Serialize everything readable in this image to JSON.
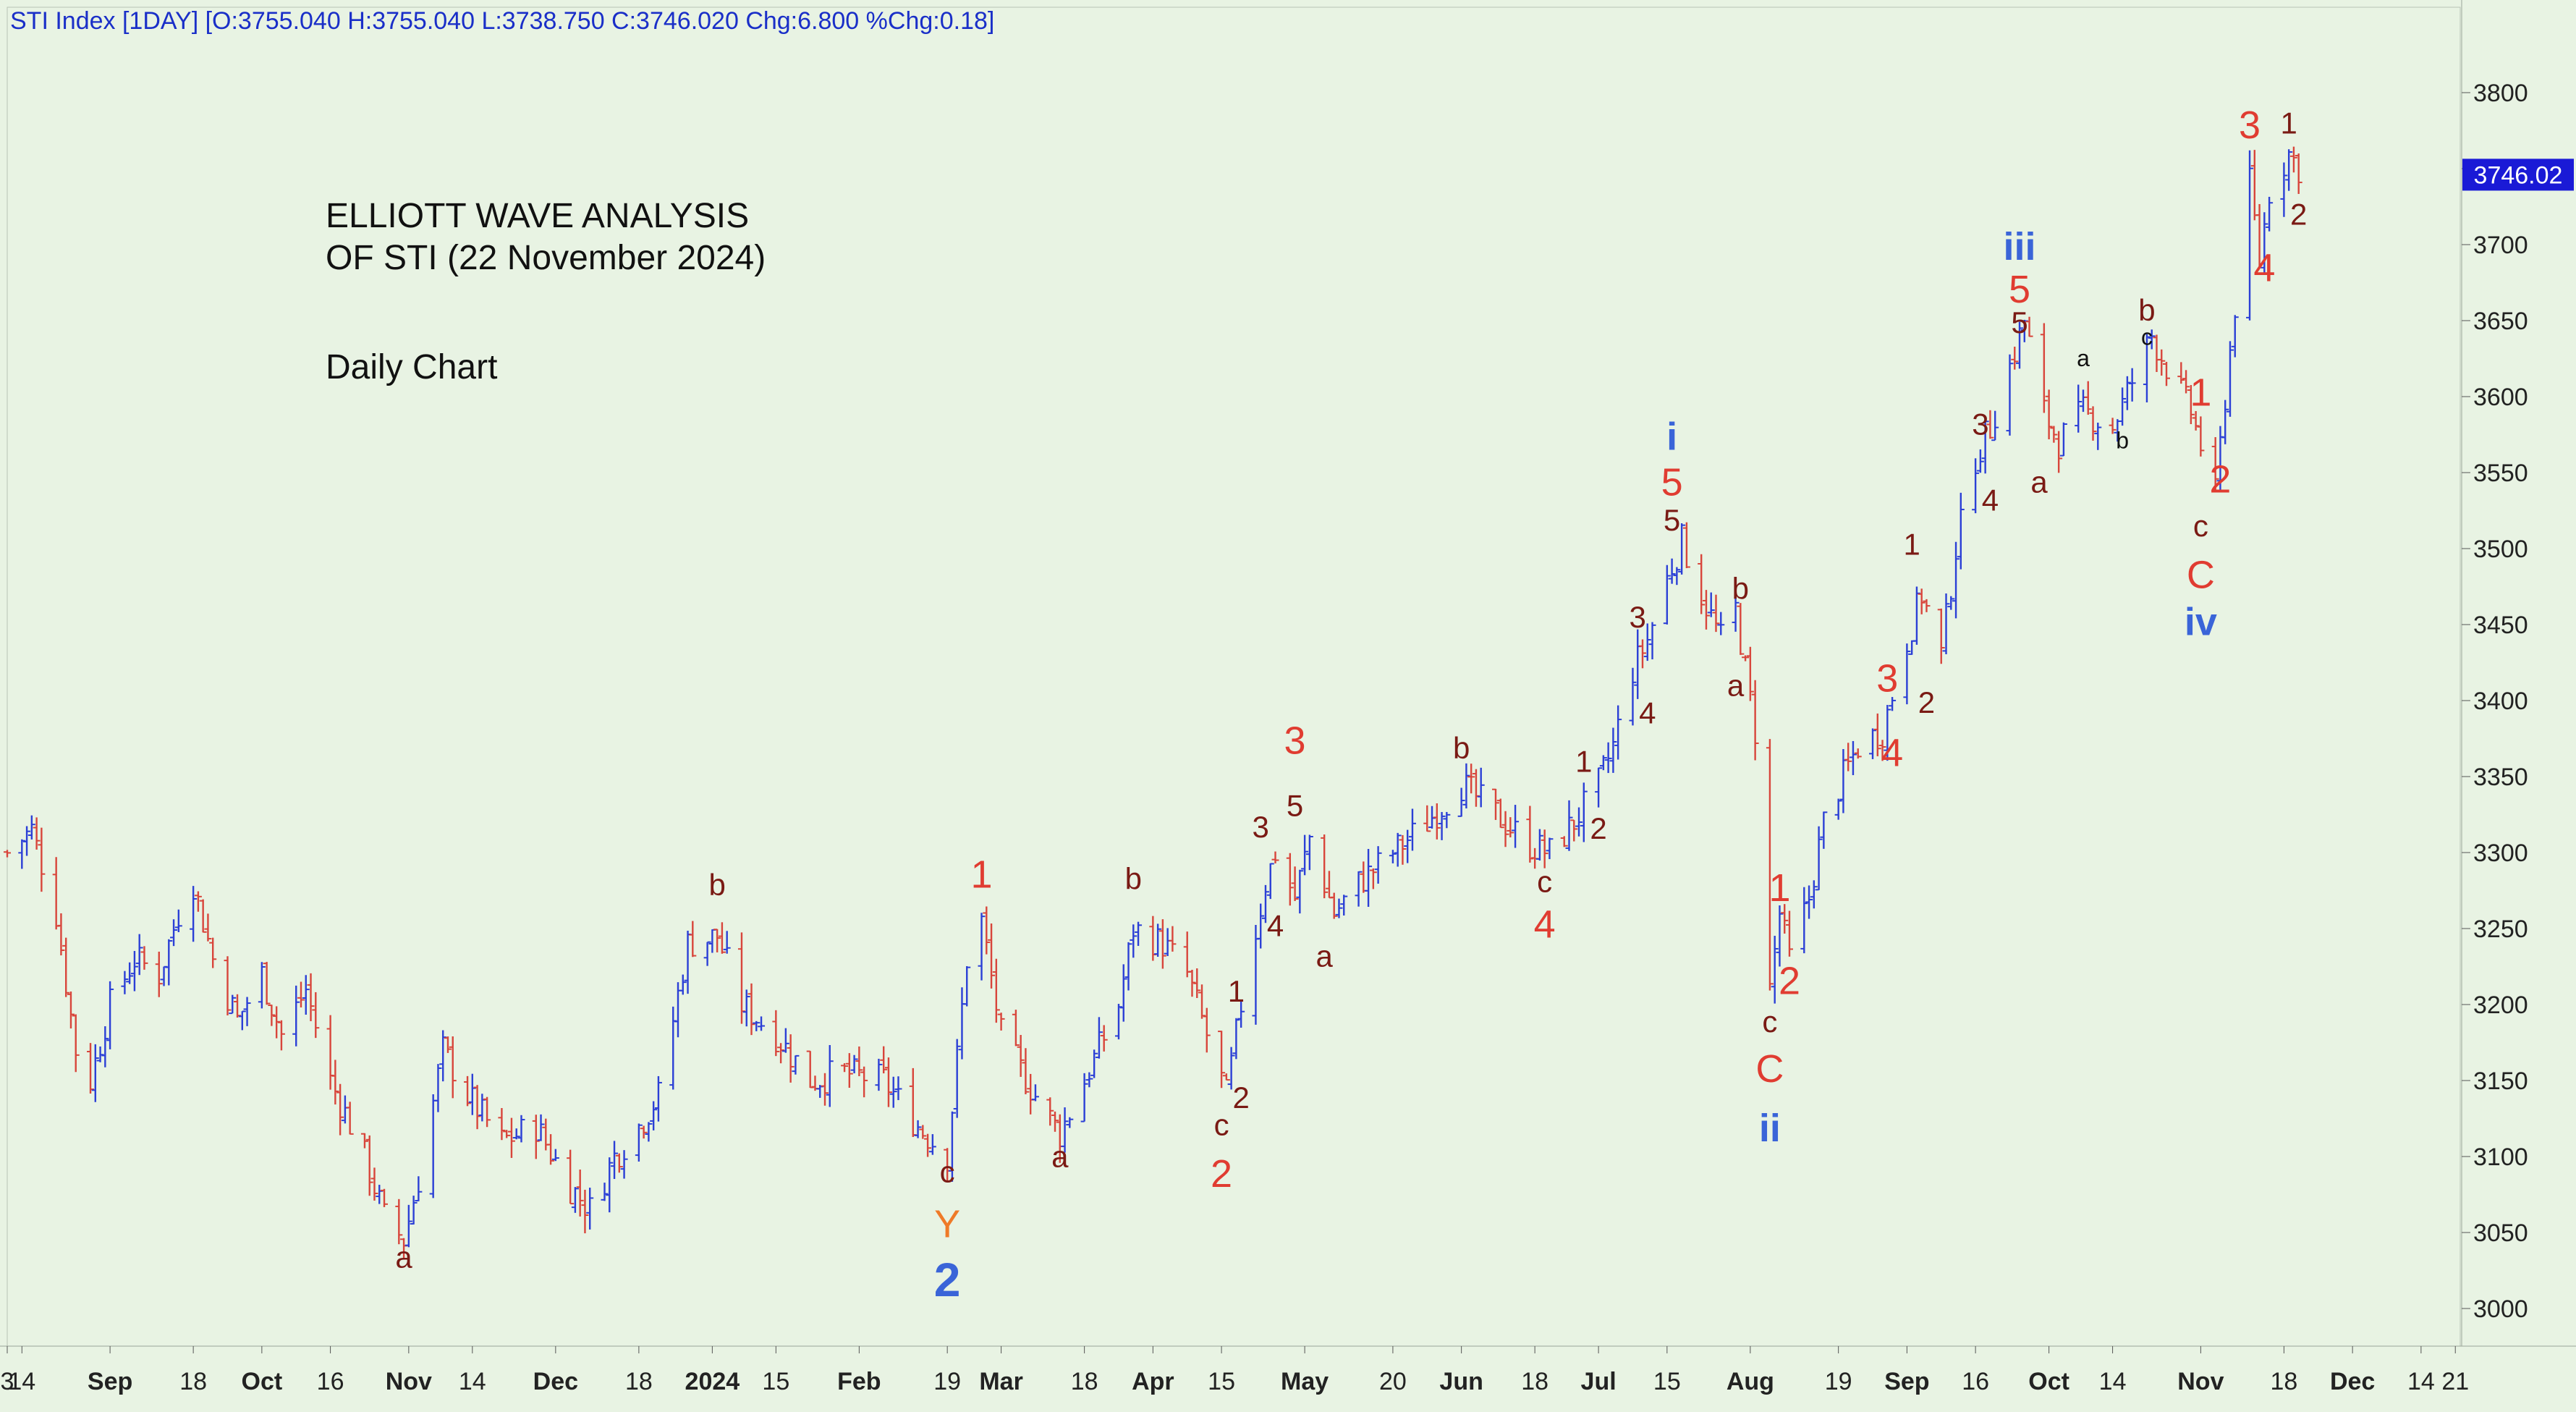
{
  "header": {
    "text": "STI Index [1DAY] [O:3755.040 H:3755.040 L:3738.750 C:3746.020 Chg:6.800 %Chg:0.18]"
  },
  "annotation": {
    "title_line1": "ELLIOTT WAVE ANALYSIS",
    "title_line2": "OF STI (22 November 2024)",
    "subtitle": "Daily Chart"
  },
  "colors": {
    "background": "#e8f3e3",
    "up_bar": "#2b3fd6",
    "down_bar": "#d8453b",
    "label_red": "#e03c31",
    "label_darkred": "#7a1a14",
    "label_blue": "#3a64d8",
    "label_orange": "#ef7a28",
    "price_tag_bg": "#1a1ad6"
  },
  "chart_data": {
    "type": "ohlc",
    "title": "STI Index [1DAY]",
    "last_price_label": "3746.02",
    "ylim": [
      2960,
      3840
    ],
    "y_ticks": [
      3000,
      3050,
      3100,
      3150,
      3200,
      3250,
      3300,
      3350,
      3400,
      3450,
      3500,
      3550,
      3600,
      3650,
      3700,
      3750,
      3800
    ],
    "y_tick_labels": [
      "3000",
      "3050",
      "3100",
      "3150",
      "3200",
      "3250",
      "3300",
      "3350",
      "3400",
      "3450",
      "3500",
      "3550",
      "3600",
      "3650",
      "3700",
      "",
      "3800"
    ],
    "x_range": [
      "2023-08-11",
      "2024-12-24"
    ],
    "x_ticks": [
      {
        "date": "2023-08-11",
        "label": "3",
        "bold": false
      },
      {
        "date": "2023-08-14",
        "label": "14",
        "bold": false
      },
      {
        "date": "2023-09-01",
        "label": "Sep",
        "bold": true
      },
      {
        "date": "2023-09-18",
        "label": "18",
        "bold": false
      },
      {
        "date": "2023-10-02",
        "label": "Oct",
        "bold": true
      },
      {
        "date": "2023-10-16",
        "label": "16",
        "bold": false
      },
      {
        "date": "2023-11-01",
        "label": "Nov",
        "bold": true
      },
      {
        "date": "2023-11-14",
        "label": "14",
        "bold": false
      },
      {
        "date": "2023-12-01",
        "label": "Dec",
        "bold": true
      },
      {
        "date": "2023-12-18",
        "label": "18",
        "bold": false
      },
      {
        "date": "2024-01-02",
        "label": "2024",
        "bold": true
      },
      {
        "date": "2024-01-15",
        "label": "15",
        "bold": false
      },
      {
        "date": "2024-02-01",
        "label": "Feb",
        "bold": true
      },
      {
        "date": "2024-02-19",
        "label": "19",
        "bold": false
      },
      {
        "date": "2024-03-01",
        "label": "Mar",
        "bold": true
      },
      {
        "date": "2024-03-18",
        "label": "18",
        "bold": false
      },
      {
        "date": "2024-04-01",
        "label": "Apr",
        "bold": true
      },
      {
        "date": "2024-04-15",
        "label": "15",
        "bold": false
      },
      {
        "date": "2024-05-02",
        "label": "May",
        "bold": true
      },
      {
        "date": "2024-05-20",
        "label": "20",
        "bold": false
      },
      {
        "date": "2024-06-03",
        "label": "Jun",
        "bold": true
      },
      {
        "date": "2024-06-18",
        "label": "18",
        "bold": false
      },
      {
        "date": "2024-07-01",
        "label": "Jul",
        "bold": true
      },
      {
        "date": "2024-07-15",
        "label": "15",
        "bold": false
      },
      {
        "date": "2024-08-01",
        "label": "Aug",
        "bold": true
      },
      {
        "date": "2024-08-19",
        "label": "19",
        "bold": false
      },
      {
        "date": "2024-09-02",
        "label": "Sep",
        "bold": true
      },
      {
        "date": "2024-09-16",
        "label": "16",
        "bold": false
      },
      {
        "date": "2024-10-01",
        "label": "Oct",
        "bold": true
      },
      {
        "date": "2024-10-14",
        "label": "14",
        "bold": false
      },
      {
        "date": "2024-11-01",
        "label": "Nov",
        "bold": true
      },
      {
        "date": "2024-11-18",
        "label": "18",
        "bold": false
      },
      {
        "date": "2024-12-02",
        "label": "Dec",
        "bold": true
      },
      {
        "date": "2024-12-16",
        "label": "14",
        "bold": false
      },
      {
        "date": "2024-12-23",
        "label": "21",
        "bold": false
      }
    ],
    "price_path": [
      [
        "2023-08-11",
        3300
      ],
      [
        "2023-08-16",
        3315
      ],
      [
        "2023-08-21",
        3260
      ],
      [
        "2023-08-25",
        3170
      ],
      [
        "2023-08-28",
        3150
      ],
      [
        "2023-09-01",
        3200
      ],
      [
        "2023-09-06",
        3230
      ],
      [
        "2023-09-11",
        3220
      ],
      [
        "2023-09-15",
        3260
      ],
      [
        "2023-09-18",
        3280
      ],
      [
        "2023-09-22",
        3230
      ],
      [
        "2023-09-27",
        3190
      ],
      [
        "2023-10-02",
        3220
      ],
      [
        "2023-10-06",
        3180
      ],
      [
        "2023-10-11",
        3210
      ],
      [
        "2023-10-16",
        3150
      ],
      [
        "2023-10-23",
        3100
      ],
      [
        "2023-10-27",
        3060
      ],
      [
        "2023-10-31",
        3045
      ],
      [
        "2023-11-03",
        3085
      ],
      [
        "2023-11-08",
        3170
      ],
      [
        "2023-11-13",
        3140
      ],
      [
        "2023-11-20",
        3110
      ],
      [
        "2023-11-27",
        3120
      ],
      [
        "2023-12-04",
        3080
      ],
      [
        "2023-12-08",
        3065
      ],
      [
        "2023-12-13",
        3100
      ],
      [
        "2023-12-18",
        3120
      ],
      [
        "2023-12-22",
        3140
      ],
      [
        "2023-12-28",
        3240
      ],
      [
        "2024-01-03",
        3245
      ],
      [
        "2024-01-08",
        3200
      ],
      [
        "2024-01-15",
        3180
      ],
      [
        "2024-01-22",
        3150
      ],
      [
        "2024-01-29",
        3155
      ],
      [
        "2024-02-06",
        3150
      ],
      [
        "2024-02-13",
        3120
      ],
      [
        "2024-02-19",
        3100
      ],
      [
        "2024-02-23",
        3230
      ],
      [
        "2024-02-26",
        3255
      ],
      [
        "2024-03-01",
        3180
      ],
      [
        "2024-03-08",
        3140
      ],
      [
        "2024-03-13",
        3115
      ],
      [
        "2024-03-18",
        3150
      ],
      [
        "2024-03-25",
        3200
      ],
      [
        "2024-03-28",
        3250
      ],
      [
        "2024-04-03",
        3240
      ],
      [
        "2024-04-08",
        3220
      ],
      [
        "2024-04-12",
        3180
      ],
      [
        "2024-04-16",
        3140
      ],
      [
        "2024-04-19",
        3200
      ],
      [
        "2024-04-24",
        3280
      ],
      [
        "2024-04-26",
        3300
      ],
      [
        "2024-04-30",
        3270
      ],
      [
        "2024-05-03",
        3310
      ],
      [
        "2024-05-08",
        3260
      ],
      [
        "2024-05-13",
        3280
      ],
      [
        "2024-05-20",
        3300
      ],
      [
        "2024-05-27",
        3320
      ],
      [
        "2024-06-03",
        3345
      ],
      [
        "2024-06-10",
        3325
      ],
      [
        "2024-06-17",
        3305
      ],
      [
        "2024-06-21",
        3300
      ],
      [
        "2024-06-26",
        3320
      ],
      [
        "2024-07-01",
        3345
      ],
      [
        "2024-07-04",
        3370
      ],
      [
        "2024-07-08",
        3420
      ],
      [
        "2024-07-11",
        3440
      ],
      [
        "2024-07-15",
        3480
      ],
      [
        "2024-07-18",
        3505
      ],
      [
        "2024-07-22",
        3470
      ],
      [
        "2024-07-26",
        3440
      ],
      [
        "2024-07-29",
        3460
      ],
      [
        "2024-07-31",
        3420
      ],
      [
        "2024-08-02",
        3380
      ],
      [
        "2024-08-05",
        3210
      ],
      [
        "2024-08-07",
        3260
      ],
      [
        "2024-08-09",
        3230
      ],
      [
        "2024-08-13",
        3270
      ],
      [
        "2024-08-16",
        3320
      ],
      [
        "2024-08-20",
        3350
      ],
      [
        "2024-08-23",
        3370
      ],
      [
        "2024-08-28",
        3380
      ],
      [
        "2024-09-02",
        3440
      ],
      [
        "2024-09-05",
        3470
      ],
      [
        "2024-09-09",
        3430
      ],
      [
        "2024-09-12",
        3500
      ],
      [
        "2024-09-16",
        3560
      ],
      [
        "2024-09-19",
        3580
      ],
      [
        "2024-09-23",
        3620
      ],
      [
        "2024-09-26",
        3650
      ],
      [
        "2024-09-30",
        3590
      ],
      [
        "2024-10-03",
        3570
      ],
      [
        "2024-10-08",
        3590
      ],
      [
        "2024-10-14",
        3580
      ],
      [
        "2024-10-18",
        3610
      ],
      [
        "2024-10-22",
        3640
      ],
      [
        "2024-10-25",
        3620
      ],
      [
        "2024-10-30",
        3590
      ],
      [
        "2024-11-04",
        3535
      ],
      [
        "2024-11-06",
        3600
      ],
      [
        "2024-11-08",
        3660
      ],
      [
        "2024-11-11",
        3740
      ],
      [
        "2024-11-13",
        3690
      ],
      [
        "2024-11-15",
        3735
      ],
      [
        "2024-11-19",
        3760
      ],
      [
        "2024-11-22",
        3746
      ]
    ],
    "wave_labels": [
      {
        "date": "2023-10-31",
        "price": 3027,
        "text": "a",
        "color": "darkred",
        "size": "m"
      },
      {
        "date": "2024-01-03",
        "price": 3272,
        "text": "b",
        "color": "darkred",
        "size": "m"
      },
      {
        "date": "2024-02-19",
        "price": 3083,
        "text": "c",
        "color": "darkred",
        "size": "m"
      },
      {
        "date": "2024-02-19",
        "price": 3047,
        "text": "Y",
        "color": "orange",
        "size": "l"
      },
      {
        "date": "2024-02-19",
        "price": 3008,
        "text": "2",
        "color": "blue",
        "size": "xl"
      },
      {
        "date": "2024-02-26",
        "price": 3277,
        "text": "1",
        "color": "red",
        "size": "l"
      },
      {
        "date": "2024-03-13",
        "price": 3093,
        "text": "a",
        "color": "darkred",
        "size": "m"
      },
      {
        "date": "2024-03-28",
        "price": 3276,
        "text": "b",
        "color": "darkred",
        "size": "m"
      },
      {
        "date": "2024-04-15",
        "price": 3114,
        "text": "c",
        "color": "darkred",
        "size": "m"
      },
      {
        "date": "2024-04-15",
        "price": 3080,
        "text": "2",
        "color": "red",
        "size": "l"
      },
      {
        "date": "2024-04-18",
        "price": 3202,
        "text": "1",
        "color": "darkred",
        "size": "m"
      },
      {
        "date": "2024-04-19",
        "price": 3132,
        "text": "2",
        "color": "darkred",
        "size": "m"
      },
      {
        "date": "2024-04-23",
        "price": 3310,
        "text": "3",
        "color": "darkred",
        "size": "m"
      },
      {
        "date": "2024-04-26",
        "price": 3245,
        "text": "4",
        "color": "darkred",
        "size": "m"
      },
      {
        "date": "2024-04-30",
        "price": 3365,
        "text": "3",
        "color": "red",
        "size": "l"
      },
      {
        "date": "2024-04-30",
        "price": 3324,
        "text": "5",
        "color": "darkred",
        "size": "m"
      },
      {
        "date": "2024-05-06",
        "price": 3225,
        "text": "a",
        "color": "darkred",
        "size": "m"
      },
      {
        "date": "2024-06-03",
        "price": 3362,
        "text": "b",
        "color": "darkred",
        "size": "m"
      },
      {
        "date": "2024-06-20",
        "price": 3274,
        "text": "c",
        "color": "darkred",
        "size": "m"
      },
      {
        "date": "2024-06-20",
        "price": 3244,
        "text": "4",
        "color": "red",
        "size": "l"
      },
      {
        "date": "2024-06-28",
        "price": 3353,
        "text": "1",
        "color": "darkred",
        "size": "m"
      },
      {
        "date": "2024-07-01",
        "price": 3309,
        "text": "2",
        "color": "darkred",
        "size": "m"
      },
      {
        "date": "2024-07-09",
        "price": 3448,
        "text": "3",
        "color": "darkred",
        "size": "m"
      },
      {
        "date": "2024-07-11",
        "price": 3385,
        "text": "4",
        "color": "darkred",
        "size": "m"
      },
      {
        "date": "2024-07-16",
        "price": 3565,
        "text": "i",
        "color": "blue",
        "size": "l"
      },
      {
        "date": "2024-07-16",
        "price": 3535,
        "text": "5",
        "color": "red",
        "size": "l"
      },
      {
        "date": "2024-07-16",
        "price": 3512,
        "text": "5",
        "color": "darkred",
        "size": "m"
      },
      {
        "date": "2024-07-30",
        "price": 3467,
        "text": "b",
        "color": "darkred",
        "size": "m"
      },
      {
        "date": "2024-07-29",
        "price": 3403,
        "text": "a",
        "color": "darkred",
        "size": "m"
      },
      {
        "date": "2024-08-05",
        "price": 3182,
        "text": "c",
        "color": "darkred",
        "size": "m"
      },
      {
        "date": "2024-08-05",
        "price": 3149,
        "text": "C",
        "color": "red",
        "size": "l"
      },
      {
        "date": "2024-08-05",
        "price": 3110,
        "text": "ii",
        "color": "blue",
        "size": "l"
      },
      {
        "date": "2024-08-07",
        "price": 3268,
        "text": "1",
        "color": "red",
        "size": "l"
      },
      {
        "date": "2024-08-09",
        "price": 3207,
        "text": "2",
        "color": "red",
        "size": "l"
      },
      {
        "date": "2024-08-29",
        "price": 3406,
        "text": "3",
        "color": "red",
        "size": "l"
      },
      {
        "date": "2024-08-30",
        "price": 3357,
        "text": "4",
        "color": "red",
        "size": "l"
      },
      {
        "date": "2024-09-03",
        "price": 3496,
        "text": "1",
        "color": "darkred",
        "size": "m"
      },
      {
        "date": "2024-09-06",
        "price": 3392,
        "text": "2",
        "color": "darkred",
        "size": "m"
      },
      {
        "date": "2024-09-17",
        "price": 3575,
        "text": "3",
        "color": "darkred",
        "size": "m"
      },
      {
        "date": "2024-09-19",
        "price": 3525,
        "text": "4",
        "color": "darkred",
        "size": "m"
      },
      {
        "date": "2024-09-25",
        "price": 3690,
        "text": "iii",
        "color": "blue",
        "size": "l"
      },
      {
        "date": "2024-09-25",
        "price": 3662,
        "text": "5",
        "color": "red",
        "size": "l"
      },
      {
        "date": "2024-09-25",
        "price": 3642,
        "text": "5",
        "color": "darkred",
        "size": "m"
      },
      {
        "date": "2024-09-29",
        "price": 3537,
        "text": "a",
        "color": "darkred",
        "size": "m"
      },
      {
        "date": "2024-10-08",
        "price": 3620,
        "text": "a",
        "color": "black",
        "size": "s"
      },
      {
        "date": "2024-10-16",
        "price": 3566,
        "text": "b",
        "color": "black",
        "size": "s"
      },
      {
        "date": "2024-10-21",
        "price": 3650,
        "text": "b",
        "color": "darkred",
        "size": "m"
      },
      {
        "date": "2024-10-21",
        "price": 3634,
        "text": "c",
        "color": "black",
        "size": "s"
      },
      {
        "date": "2024-11-01",
        "price": 3594,
        "text": "1",
        "color": "red",
        "size": "l"
      },
      {
        "date": "2024-11-05",
        "price": 3537,
        "text": "2",
        "color": "red",
        "size": "l"
      },
      {
        "date": "2024-11-01",
        "price": 3508,
        "text": "c",
        "color": "darkred",
        "size": "m"
      },
      {
        "date": "2024-11-01",
        "price": 3474,
        "text": "C",
        "color": "red",
        "size": "l"
      },
      {
        "date": "2024-11-01",
        "price": 3443,
        "text": "iv",
        "color": "blue",
        "size": "l"
      },
      {
        "date": "2024-11-11",
        "price": 3770,
        "text": "3",
        "color": "red",
        "size": "l"
      },
      {
        "date": "2024-11-14",
        "price": 3676,
        "text": "4",
        "color": "red",
        "size": "l"
      },
      {
        "date": "2024-11-19",
        "price": 3773,
        "text": "1",
        "color": "darkred",
        "size": "m"
      },
      {
        "date": "2024-11-21",
        "price": 3713,
        "text": "2",
        "color": "darkred",
        "size": "m"
      }
    ]
  }
}
